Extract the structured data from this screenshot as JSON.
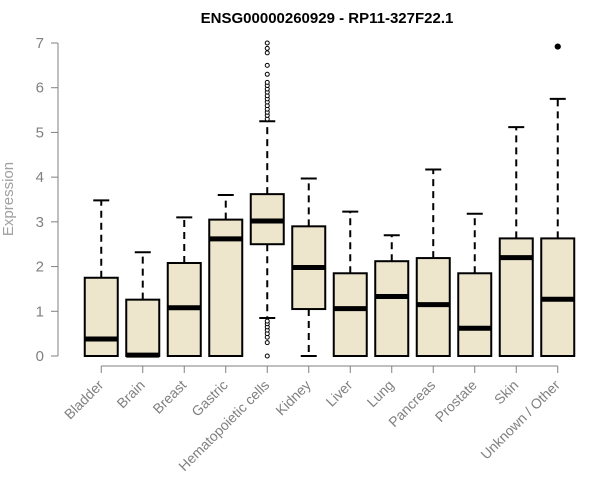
{
  "chart_data": {
    "type": "boxplot",
    "title": "ENSG00000260929 - RP11-327F22.1",
    "xlabel": "",
    "ylabel": "Expression",
    "ylim": [
      0,
      7
    ],
    "yticks": [
      0,
      1,
      2,
      3,
      4,
      5,
      6,
      7
    ],
    "box_fill": "#ede5cc",
    "box_stroke": "#000000",
    "categories": [
      "Bladder",
      "Brain",
      "Breast",
      "Gastric",
      "Hematopoietic cells",
      "Kidney",
      "Liver",
      "Lung",
      "Pancreas",
      "Prostate",
      "Skin",
      "Unknown / Other"
    ],
    "boxes": [
      {
        "category": "Bladder",
        "q1": 0.0,
        "median": 0.38,
        "q3": 1.75,
        "whisker_low": 0.0,
        "whisker_high": 3.48,
        "outliers": []
      },
      {
        "category": "Brain",
        "q1": 0.0,
        "median": 0.02,
        "q3": 1.26,
        "whisker_low": 0.0,
        "whisker_high": 2.32,
        "outliers": []
      },
      {
        "category": "Breast",
        "q1": 0.0,
        "median": 1.08,
        "q3": 2.08,
        "whisker_low": 0.0,
        "whisker_high": 3.1,
        "outliers": []
      },
      {
        "category": "Gastric",
        "q1": 0.0,
        "median": 2.62,
        "q3": 3.05,
        "whisker_low": 0.0,
        "whisker_high": 3.6,
        "outliers": []
      },
      {
        "category": "Hematopoietic cells",
        "q1": 2.5,
        "median": 3.02,
        "q3": 3.62,
        "whisker_low": 0.85,
        "whisker_high": 5.25,
        "outliers": [
          0.0,
          0.3,
          0.42,
          0.5,
          0.58,
          0.65,
          0.72,
          0.78,
          5.3,
          5.38,
          5.45,
          5.52,
          5.6,
          5.68,
          5.75,
          5.82,
          5.9,
          5.97,
          6.05,
          6.12,
          6.3,
          6.5,
          6.78,
          6.88,
          7.0
        ]
      },
      {
        "category": "Kidney",
        "q1": 1.05,
        "median": 1.98,
        "q3": 2.9,
        "whisker_low": 0.0,
        "whisker_high": 3.97,
        "outliers": []
      },
      {
        "category": "Liver",
        "q1": 0.0,
        "median": 1.06,
        "q3": 1.85,
        "whisker_low": 0.0,
        "whisker_high": 3.23,
        "outliers": []
      },
      {
        "category": "Lung",
        "q1": 0.0,
        "median": 1.33,
        "q3": 2.12,
        "whisker_low": 0.0,
        "whisker_high": 2.7,
        "outliers": []
      },
      {
        "category": "Pancreas",
        "q1": 0.0,
        "median": 1.15,
        "q3": 2.19,
        "whisker_low": 0.0,
        "whisker_high": 4.17,
        "outliers": []
      },
      {
        "category": "Prostate",
        "q1": 0.0,
        "median": 0.62,
        "q3": 1.85,
        "whisker_low": 0.0,
        "whisker_high": 3.18,
        "outliers": []
      },
      {
        "category": "Skin",
        "q1": 0.0,
        "median": 2.2,
        "q3": 2.63,
        "whisker_low": 0.0,
        "whisker_high": 5.12,
        "outliers": []
      },
      {
        "category": "Unknown / Other",
        "q1": 0.0,
        "median": 1.27,
        "q3": 2.63,
        "whisker_low": 0.0,
        "whisker_high": 5.75,
        "outliers": [
          6.92
        ]
      }
    ]
  }
}
